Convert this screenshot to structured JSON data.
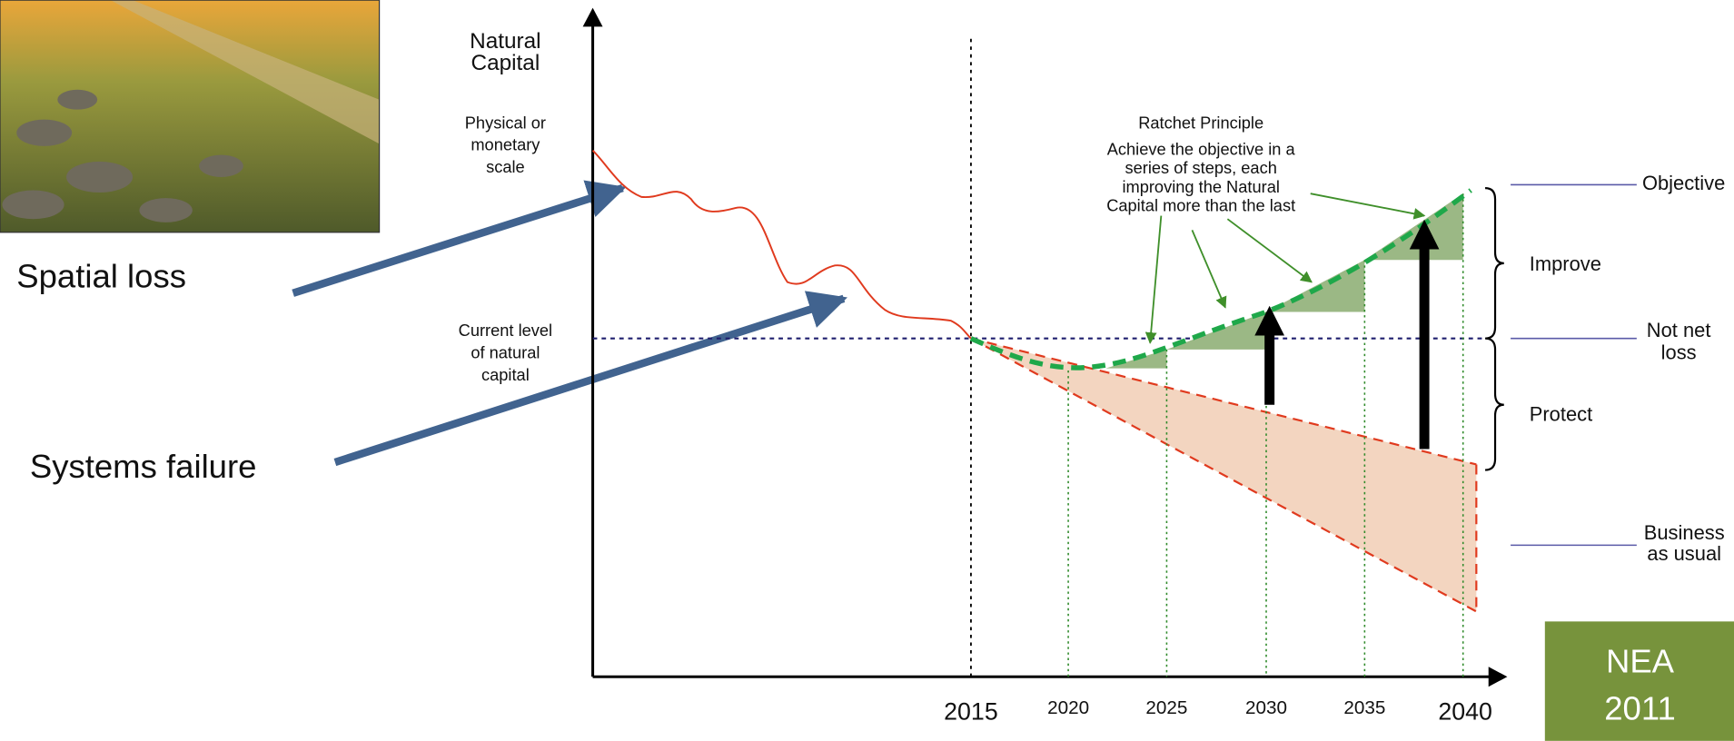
{
  "axis": {
    "title": [
      "Natural",
      "Capital"
    ],
    "scale": [
      "Physical or",
      "monetary",
      "scale"
    ],
    "current": [
      "Current level",
      "of natural",
      "capital"
    ]
  },
  "years": [
    "2015",
    "2020",
    "2025",
    "2030",
    "2035",
    "2040"
  ],
  "causes": [
    "Spatial loss",
    "Systems failure"
  ],
  "ratchet": {
    "title": "Ratchet Principle",
    "text": [
      "Achieve the objective in a",
      "series of steps, each",
      "improving the Natural",
      "Capital more than the last"
    ]
  },
  "levels": {
    "objective": "Objective",
    "improve": "Improve",
    "not_net_loss": [
      "Not net",
      "loss"
    ],
    "protect": "Protect",
    "business": [
      "Business",
      "as usual"
    ]
  },
  "badge": [
    "NEA",
    "2011"
  ]
}
